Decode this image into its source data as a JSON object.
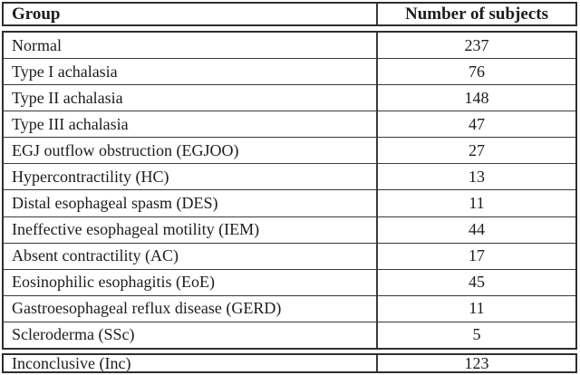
{
  "table": {
    "header": {
      "group": "Group",
      "count": "Number of subjects"
    },
    "rows": [
      {
        "group": "Normal",
        "count": "237"
      },
      {
        "group": "Type I achalasia",
        "count": "76"
      },
      {
        "group": "Type II achalasia",
        "count": "148"
      },
      {
        "group": "Type III achalasia",
        "count": "47"
      },
      {
        "group": "EGJ outflow obstruction (EGJOO)",
        "count": "27"
      },
      {
        "group": "Hypercontractility (HC)",
        "count": "13"
      },
      {
        "group": "Distal esophageal spasm (DES)",
        "count": "11"
      },
      {
        "group": "Ineffective esophageal motility (IEM)",
        "count": "44"
      },
      {
        "group": "Absent contractility (AC)",
        "count": "17"
      },
      {
        "group": "Eosinophilic esophagitis (EoE)",
        "count": "45"
      },
      {
        "group": "Gastroesophageal reflux disease (GERD)",
        "count": "11"
      },
      {
        "group": "Scleroderma (SSc)",
        "count": "5"
      }
    ],
    "footer_row": {
      "group": "Inconclusive (Inc)",
      "count": "123"
    }
  },
  "colors": {
    "border": "#2e2e2e",
    "text": "#1c1c1c",
    "background": "#ffffff"
  }
}
